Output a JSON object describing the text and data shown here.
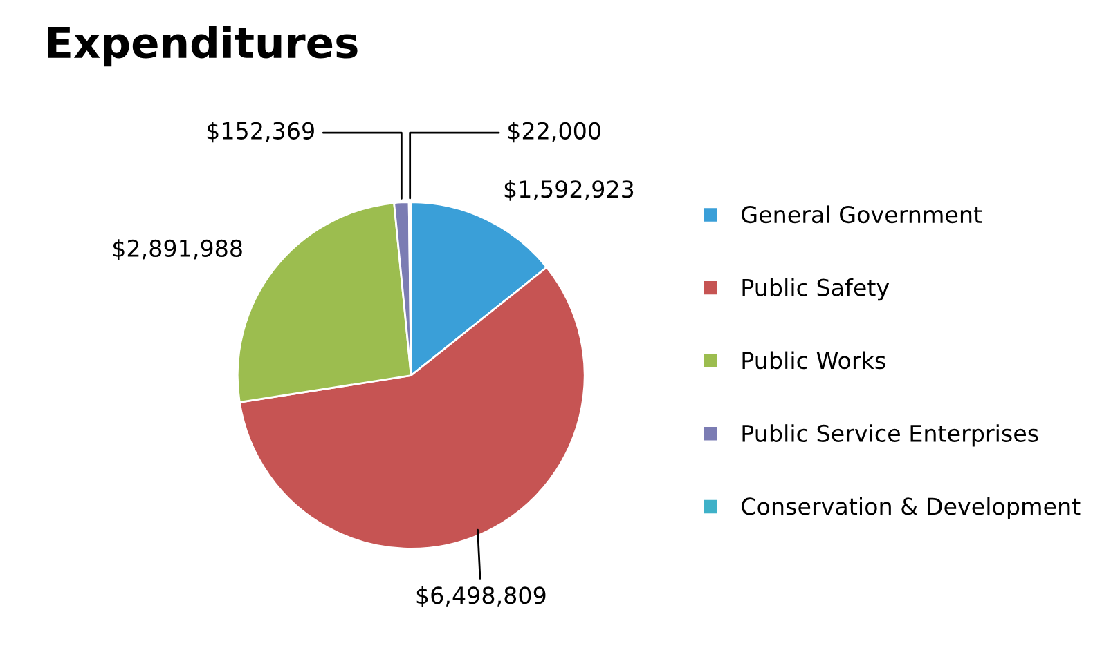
{
  "chart_data": {
    "type": "pie",
    "title": "Expenditures",
    "categories": [
      "General Government",
      "Public Safety",
      "Public Works",
      "Public Service Enterprises",
      "Conservation & Development"
    ],
    "values": [
      1592923,
      6498809,
      2891988,
      152369,
      22000
    ],
    "value_labels": [
      "$1,592,923",
      "$6,498,809",
      "$2,891,988",
      "$152,369",
      "$22,000"
    ],
    "colors": [
      "#3a9fd8",
      "#c65453",
      "#9cbd4f",
      "#7b7cb3",
      "#3fb1c8"
    ],
    "legend": "right",
    "marker": "square"
  }
}
